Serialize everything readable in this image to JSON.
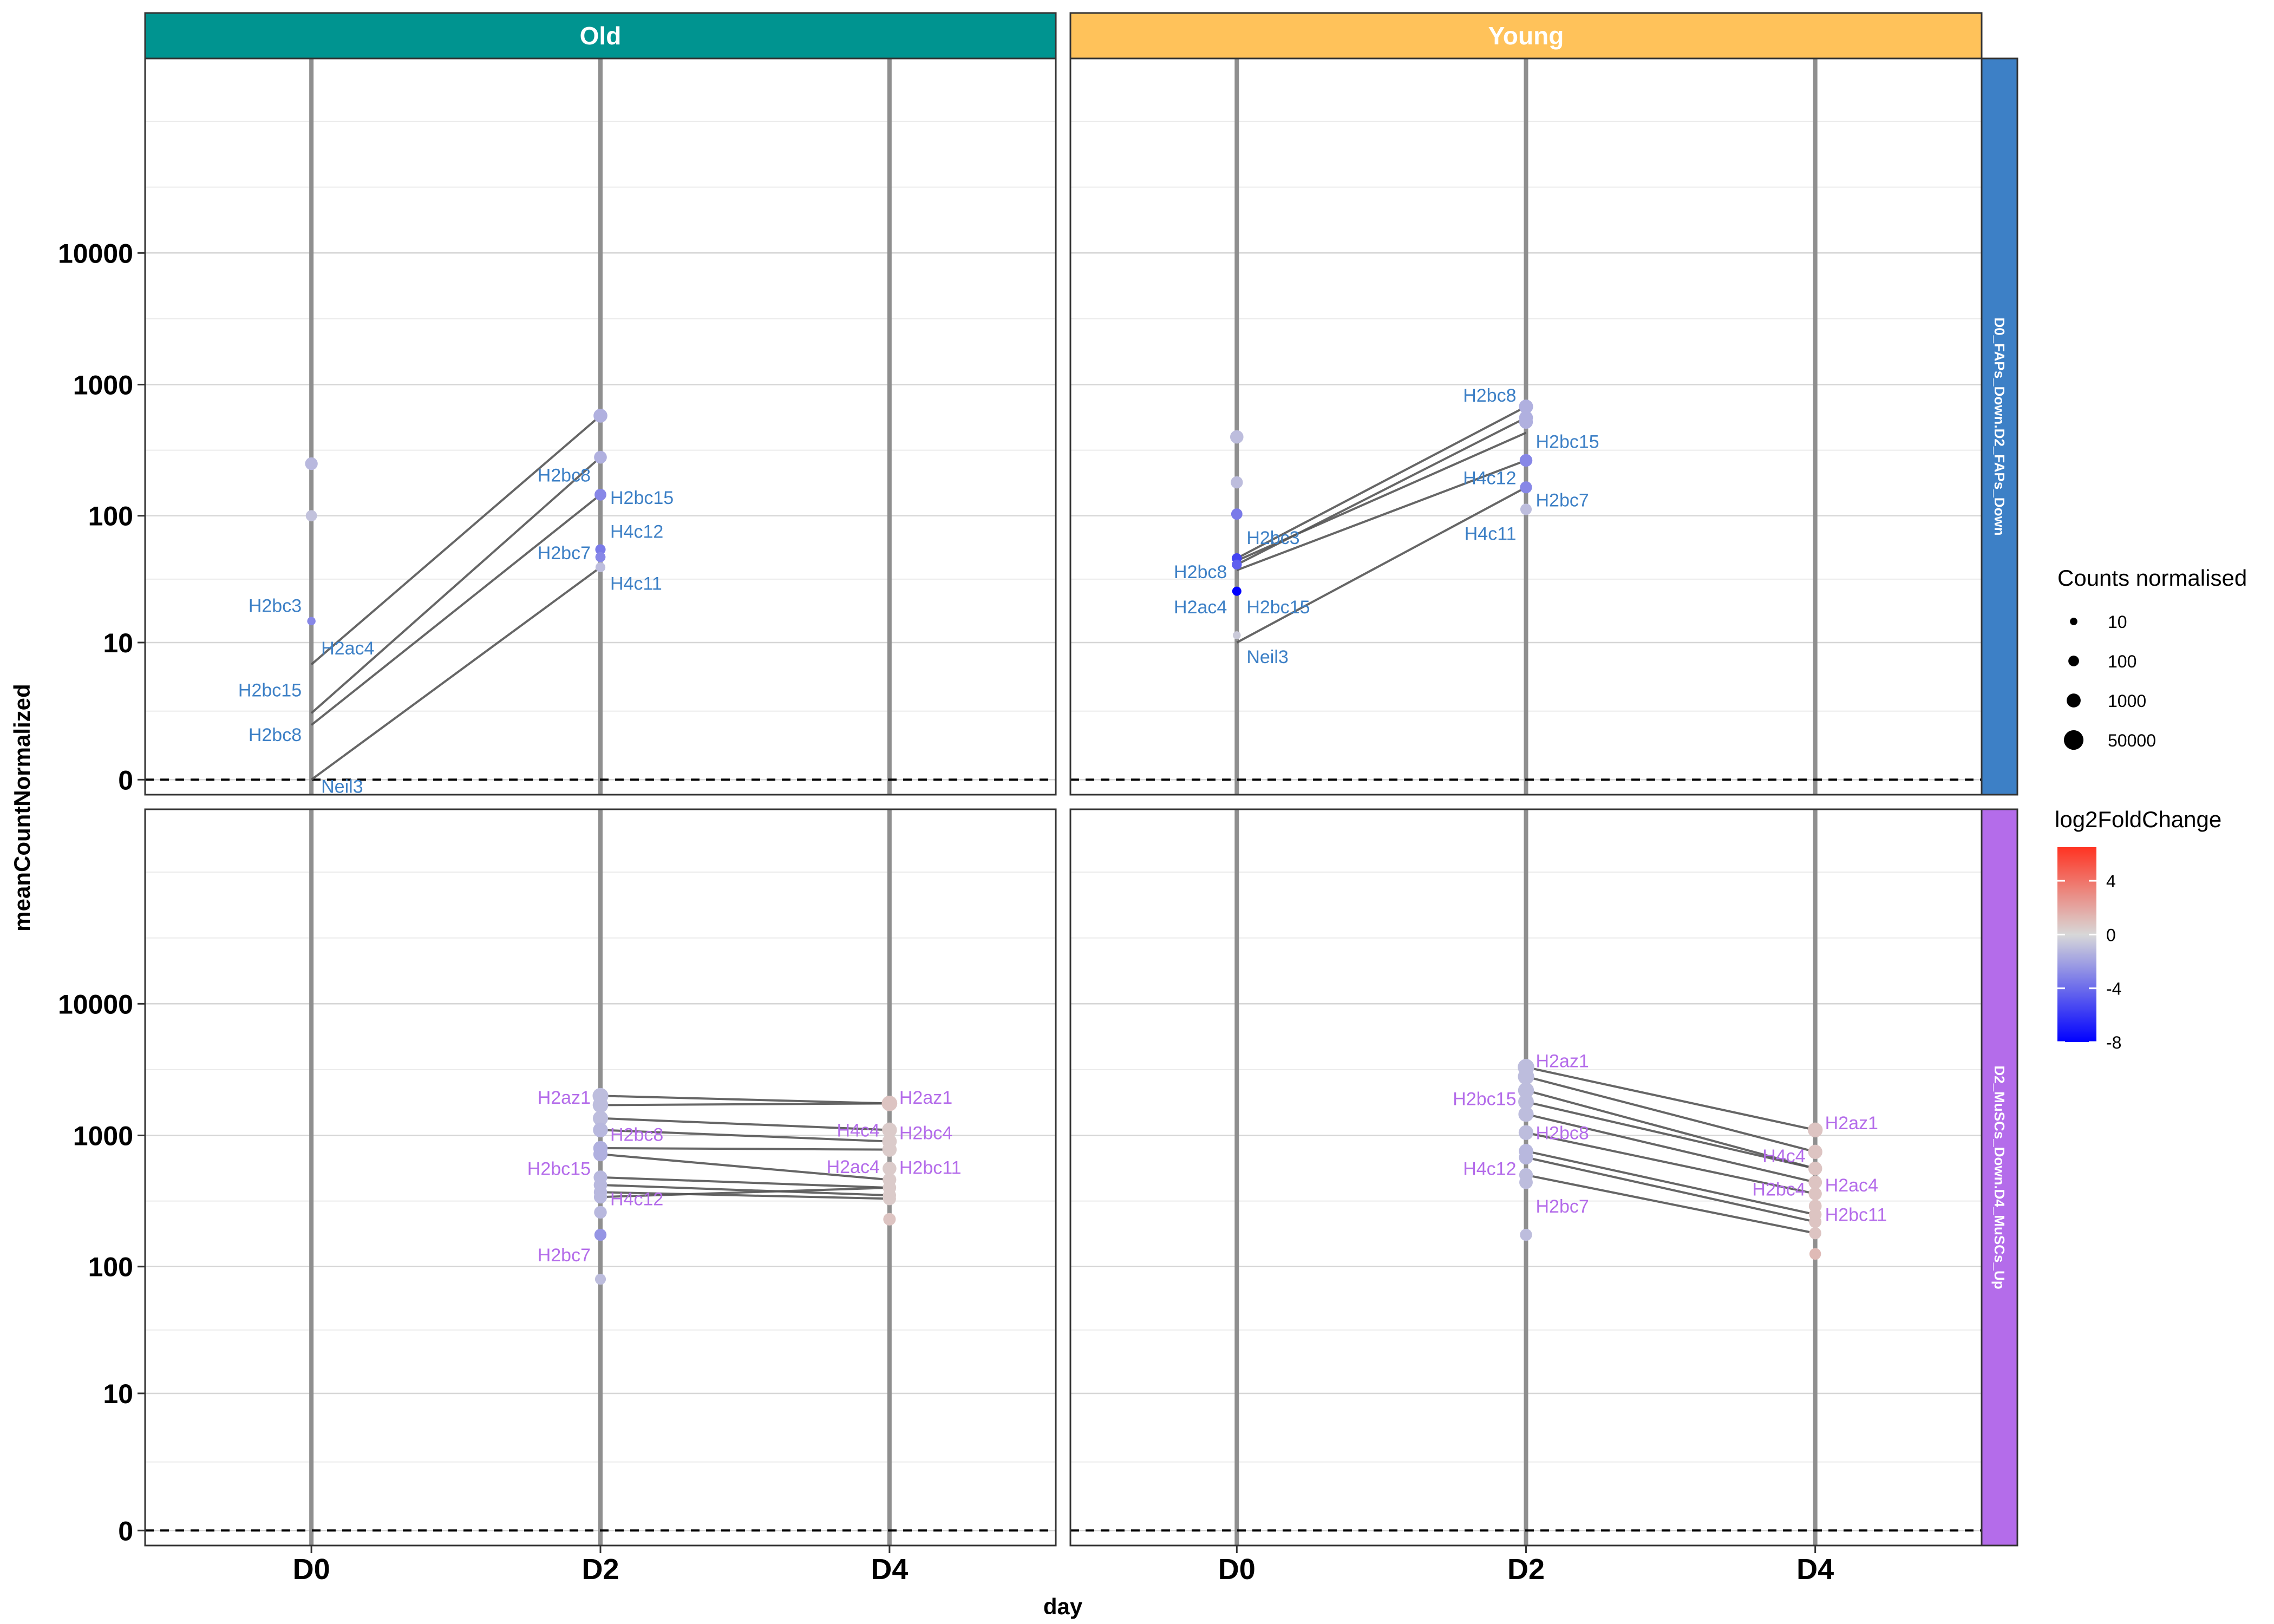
{
  "chart_data": {
    "type": "scatter",
    "xlabel": "day",
    "ylabel": "meanCountNormalized",
    "x_categories": [
      "D0",
      "D2",
      "D4"
    ],
    "y_scale": "pseudo-log",
    "y_ticks": [
      0,
      10,
      100,
      1000,
      10000
    ],
    "y_tick_labels": [
      "0",
      "10",
      "100",
      "1000",
      "10000"
    ],
    "ylim": [
      -0.3,
      300000
    ],
    "reference_line_y": 0,
    "columns": [
      {
        "label": "Old",
        "color": "#009490"
      },
      {
        "label": "Young",
        "color": "#FFC25A"
      }
    ],
    "rows": [
      {
        "label": "D0_FAPs_Down.D2_FAPs_Down",
        "color": "#3D80C6",
        "gene_label_color": "#3D80C6"
      },
      {
        "label": "D2_MuSCs_Down.D4_MuSCs_Up",
        "color": "#B46CEA",
        "gene_label_color": "#B46CEA"
      }
    ],
    "panels": [
      {
        "col": 0,
        "row": 0,
        "points": [
          {
            "x": "D0",
            "y": 250,
            "fc": -1.2,
            "size": 250
          },
          {
            "x": "D0",
            "y": 100,
            "fc": -0.8,
            "size": 100
          },
          {
            "x": "D0",
            "y": 15,
            "fc": -3.0,
            "size": 15
          },
          {
            "x": "D2",
            "y": 580,
            "fc": -1.5,
            "size": 580
          },
          {
            "x": "D2",
            "y": 280,
            "fc": -1.5,
            "size": 280
          },
          {
            "x": "D2",
            "y": 145,
            "fc": -3.0,
            "size": 145
          },
          {
            "x": "D2",
            "y": 55,
            "fc": -3.5,
            "size": 55
          },
          {
            "x": "D2",
            "y": 48,
            "fc": -3.0,
            "size": 48
          },
          {
            "x": "D2",
            "y": 40,
            "fc": -1.0,
            "size": 40
          }
        ],
        "segments": [
          {
            "y0": 6.5,
            "y1": 580
          },
          {
            "y0": 2.2,
            "y1": 280
          },
          {
            "y0": 1.6,
            "y1": 145
          },
          {
            "y0": 0,
            "y1": 40
          }
        ],
        "labels": [
          {
            "text": "H2bc3",
            "x": "D0",
            "y": 20,
            "side": "left"
          },
          {
            "text": "H2ac4",
            "x": "D0",
            "y": 9.0,
            "side": "right"
          },
          {
            "text": "H2bc15",
            "x": "D0",
            "y": 3.8,
            "side": "left"
          },
          {
            "text": "H2bc8",
            "x": "D0",
            "y": 1.2,
            "side": "left"
          },
          {
            "text": "Neil3",
            "x": "D0",
            "y": -0.12,
            "side": "right"
          },
          {
            "text": "H2bc8",
            "x": "D2",
            "y": 205,
            "side": "left"
          },
          {
            "text": "H2bc15",
            "x": "D2",
            "y": 138,
            "side": "right"
          },
          {
            "text": "H4c12",
            "x": "D2",
            "y": 76,
            "side": "right"
          },
          {
            "text": "H2bc7",
            "x": "D2",
            "y": 52,
            "side": "left"
          },
          {
            "text": "H4c11",
            "x": "D2",
            "y": 30,
            "side": "right"
          }
        ]
      },
      {
        "col": 1,
        "row": 0,
        "points": [
          {
            "x": "D0",
            "y": 400,
            "fc": -1.0,
            "size": 400
          },
          {
            "x": "D0",
            "y": 180,
            "fc": -1.0,
            "size": 180
          },
          {
            "x": "D0",
            "y": 103,
            "fc": -3.5,
            "size": 103
          },
          {
            "x": "D0",
            "y": 47,
            "fc": -5.5,
            "size": 47
          },
          {
            "x": "D0",
            "y": 42,
            "fc": -4.5,
            "size": 42
          },
          {
            "x": "D0",
            "y": 26,
            "fc": -8.0,
            "size": 26
          },
          {
            "x": "D0",
            "y": 11.5,
            "fc": -0.5,
            "size": 11
          },
          {
            "x": "D2",
            "y": 680,
            "fc": -1.5,
            "size": 680
          },
          {
            "x": "D2",
            "y": 560,
            "fc": -1.5,
            "size": 560
          },
          {
            "x": "D2",
            "y": 520,
            "fc": -1.5,
            "size": 520
          },
          {
            "x": "D2",
            "y": 265,
            "fc": -3.0,
            "size": 265
          },
          {
            "x": "D2",
            "y": 165,
            "fc": -3.0,
            "size": 165
          },
          {
            "x": "D2",
            "y": 112,
            "fc": -1.0,
            "size": 112
          }
        ],
        "segments": [
          {
            "y0": 47,
            "y1": 680
          },
          {
            "y0": 42,
            "y1": 560
          },
          {
            "y0": 45,
            "y1": 430
          },
          {
            "y0": 38,
            "y1": 265
          },
          {
            "y0": 10,
            "y1": 165
          }
        ],
        "labels": [
          {
            "text": "H2bc3",
            "x": "D0",
            "y": 68,
            "side": "right"
          },
          {
            "text": "H2bc8",
            "x": "D0",
            "y": 37,
            "side": "left"
          },
          {
            "text": "H2ac4",
            "x": "D0",
            "y": 19.5,
            "side": "left"
          },
          {
            "text": "H2bc15",
            "x": "D0",
            "y": 19.5,
            "side": "right"
          },
          {
            "text": "Neil3",
            "x": "D0",
            "y": 7.6,
            "side": "right"
          },
          {
            "text": "H2bc8",
            "x": "D2",
            "y": 830,
            "side": "left"
          },
          {
            "text": "H2bc15",
            "x": "D2",
            "y": 370,
            "side": "right"
          },
          {
            "text": "H4c12",
            "x": "D2",
            "y": 195,
            "side": "left"
          },
          {
            "text": "H2bc7",
            "x": "D2",
            "y": 132,
            "side": "right"
          },
          {
            "text": "H4c11",
            "x": "D2",
            "y": 73,
            "side": "left"
          }
        ]
      },
      {
        "col": 0,
        "row": 1,
        "points": [
          {
            "x": "D2",
            "y": 2000,
            "fc": -1.0,
            "size": 2000
          },
          {
            "x": "D2",
            "y": 1700,
            "fc": -1.0,
            "size": 1700
          },
          {
            "x": "D2",
            "y": 1350,
            "fc": -1.0,
            "size": 1350
          },
          {
            "x": "D2",
            "y": 1100,
            "fc": -1.2,
            "size": 1100
          },
          {
            "x": "D2",
            "y": 800,
            "fc": -1.5,
            "size": 800
          },
          {
            "x": "D2",
            "y": 720,
            "fc": -1.5,
            "size": 720
          },
          {
            "x": "D2",
            "y": 480,
            "fc": -1.2,
            "size": 480
          },
          {
            "x": "D2",
            "y": 420,
            "fc": -1.2,
            "size": 420
          },
          {
            "x": "D2",
            "y": 370,
            "fc": -1.2,
            "size": 370
          },
          {
            "x": "D2",
            "y": 340,
            "fc": -1.2,
            "size": 340
          },
          {
            "x": "D2",
            "y": 260,
            "fc": -1.2,
            "size": 260
          },
          {
            "x": "D2",
            "y": 175,
            "fc": -2.5,
            "size": 175
          },
          {
            "x": "D2",
            "y": 80,
            "fc": -1.0,
            "size": 80
          },
          {
            "x": "D4",
            "y": 1750,
            "fc": 0.8,
            "size": 1750
          },
          {
            "x": "D4",
            "y": 1100,
            "fc": 0.5,
            "size": 1100
          },
          {
            "x": "D4",
            "y": 900,
            "fc": 0.5,
            "size": 900
          },
          {
            "x": "D4",
            "y": 780,
            "fc": 0.5,
            "size": 780
          },
          {
            "x": "D4",
            "y": 560,
            "fc": 0.5,
            "size": 560
          },
          {
            "x": "D4",
            "y": 460,
            "fc": 0.5,
            "size": 460
          },
          {
            "x": "D4",
            "y": 400,
            "fc": 0.5,
            "size": 400
          },
          {
            "x": "D4",
            "y": 350,
            "fc": 0.5,
            "size": 350
          },
          {
            "x": "D4",
            "y": 330,
            "fc": 0.5,
            "size": 330
          },
          {
            "x": "D4",
            "y": 230,
            "fc": 0.8,
            "size": 230
          }
        ],
        "segments": [
          {
            "y0": 2000,
            "y1": 1750
          },
          {
            "y0": 1700,
            "y1": 1750
          },
          {
            "y0": 1350,
            "y1": 1100
          },
          {
            "y0": 1100,
            "y1": 900
          },
          {
            "y0": 800,
            "y1": 780
          },
          {
            "y0": 720,
            "y1": 460
          },
          {
            "y0": 480,
            "y1": 400
          },
          {
            "y0": 420,
            "y1": 350
          },
          {
            "y0": 370,
            "y1": 330
          },
          {
            "y0": 340,
            "y1": 400
          }
        ],
        "labels": [
          {
            "text": "H2az1",
            "x": "D2",
            "y": 1950,
            "side": "left"
          },
          {
            "text": "H2bc8",
            "x": "D2",
            "y": 1020,
            "side": "right"
          },
          {
            "text": "H2bc15",
            "x": "D2",
            "y": 560,
            "side": "left"
          },
          {
            "text": "H4c12",
            "x": "D2",
            "y": 330,
            "side": "right"
          },
          {
            "text": "H2bc7",
            "x": "D2",
            "y": 123,
            "side": "left"
          },
          {
            "text": "H2az1",
            "x": "D4",
            "y": 1950,
            "side": "right"
          },
          {
            "text": "H4c4",
            "x": "D4",
            "y": 1100,
            "side": "left"
          },
          {
            "text": "H2bc4",
            "x": "D4",
            "y": 1050,
            "side": "right"
          },
          {
            "text": "H2ac4",
            "x": "D4",
            "y": 580,
            "side": "left"
          },
          {
            "text": "H2bc11",
            "x": "D4",
            "y": 570,
            "side": "right"
          }
        ]
      },
      {
        "col": 1,
        "row": 1,
        "points": [
          {
            "x": "D2",
            "y": 3300,
            "fc": -1.0,
            "size": 3300
          },
          {
            "x": "D2",
            "y": 2800,
            "fc": -1.0,
            "size": 2800
          },
          {
            "x": "D2",
            "y": 2200,
            "fc": -1.0,
            "size": 2200
          },
          {
            "x": "D2",
            "y": 1800,
            "fc": -1.0,
            "size": 1800
          },
          {
            "x": "D2",
            "y": 1450,
            "fc": -1.0,
            "size": 1450
          },
          {
            "x": "D2",
            "y": 1050,
            "fc": -1.0,
            "size": 1050
          },
          {
            "x": "D2",
            "y": 760,
            "fc": -1.2,
            "size": 760
          },
          {
            "x": "D2",
            "y": 680,
            "fc": -1.2,
            "size": 680
          },
          {
            "x": "D2",
            "y": 500,
            "fc": -1.0,
            "size": 500
          },
          {
            "x": "D2",
            "y": 440,
            "fc": -1.0,
            "size": 440
          },
          {
            "x": "D2",
            "y": 175,
            "fc": -1.0,
            "size": 175
          },
          {
            "x": "D4",
            "y": 1100,
            "fc": 0.8,
            "size": 1100
          },
          {
            "x": "D4",
            "y": 750,
            "fc": 0.8,
            "size": 750
          },
          {
            "x": "D4",
            "y": 560,
            "fc": 0.8,
            "size": 560
          },
          {
            "x": "D4",
            "y": 440,
            "fc": 0.8,
            "size": 440
          },
          {
            "x": "D4",
            "y": 360,
            "fc": 0.8,
            "size": 360
          },
          {
            "x": "D4",
            "y": 290,
            "fc": 0.8,
            "size": 290
          },
          {
            "x": "D4",
            "y": 250,
            "fc": 0.8,
            "size": 250
          },
          {
            "x": "D4",
            "y": 220,
            "fc": 0.8,
            "size": 220
          },
          {
            "x": "D4",
            "y": 180,
            "fc": 0.8,
            "size": 180
          },
          {
            "x": "D4",
            "y": 125,
            "fc": 1.2,
            "size": 125
          }
        ],
        "segments": [
          {
            "y0": 3300,
            "y1": 1100
          },
          {
            "y0": 2800,
            "y1": 750
          },
          {
            "y0": 2200,
            "y1": 560
          },
          {
            "y0": 1800,
            "y1": 560
          },
          {
            "y0": 1450,
            "y1": 440
          },
          {
            "y0": 1050,
            "y1": 360
          },
          {
            "y0": 760,
            "y1": 250
          },
          {
            "y0": 680,
            "y1": 220
          },
          {
            "y0": 500,
            "y1": 180
          }
        ],
        "labels": [
          {
            "text": "H2az1",
            "x": "D2",
            "y": 3700,
            "side": "right"
          },
          {
            "text": "H2bc15",
            "x": "D2",
            "y": 1900,
            "side": "left"
          },
          {
            "text": "H2bc8",
            "x": "D2",
            "y": 1050,
            "side": "right"
          },
          {
            "text": "H4c12",
            "x": "D2",
            "y": 560,
            "side": "left"
          },
          {
            "text": "H2bc7",
            "x": "D2",
            "y": 290,
            "side": "right"
          },
          {
            "text": "H2az1",
            "x": "D4",
            "y": 1250,
            "side": "right"
          },
          {
            "text": "H4c4",
            "x": "D4",
            "y": 700,
            "side": "left"
          },
          {
            "text": "H2bc4",
            "x": "D4",
            "y": 390,
            "side": "left"
          },
          {
            "text": "H2ac4",
            "x": "D4",
            "y": 420,
            "side": "right"
          },
          {
            "text": "H2bc11",
            "x": "D4",
            "y": 250,
            "side": "right"
          }
        ]
      }
    ],
    "legend_size": {
      "title": "Counts normalised",
      "entries": [
        {
          "label": "10",
          "value": 10
        },
        {
          "label": "100",
          "value": 100
        },
        {
          "label": "1000",
          "value": 1000
        },
        {
          "label": "50000",
          "value": 50000
        }
      ]
    },
    "legend_color": {
      "title": "log2FoldChange",
      "ticks": [
        {
          "label": "4",
          "value": 4
        },
        {
          "label": "0",
          "value": 0
        },
        {
          "label": "-4",
          "value": -4
        },
        {
          "label": "-8",
          "value": -8
        }
      ],
      "range": [
        -8,
        6.5
      ],
      "low_color": "#0000FF",
      "mid_color": "#D8D8D8",
      "high_color": "#FF3322"
    }
  }
}
